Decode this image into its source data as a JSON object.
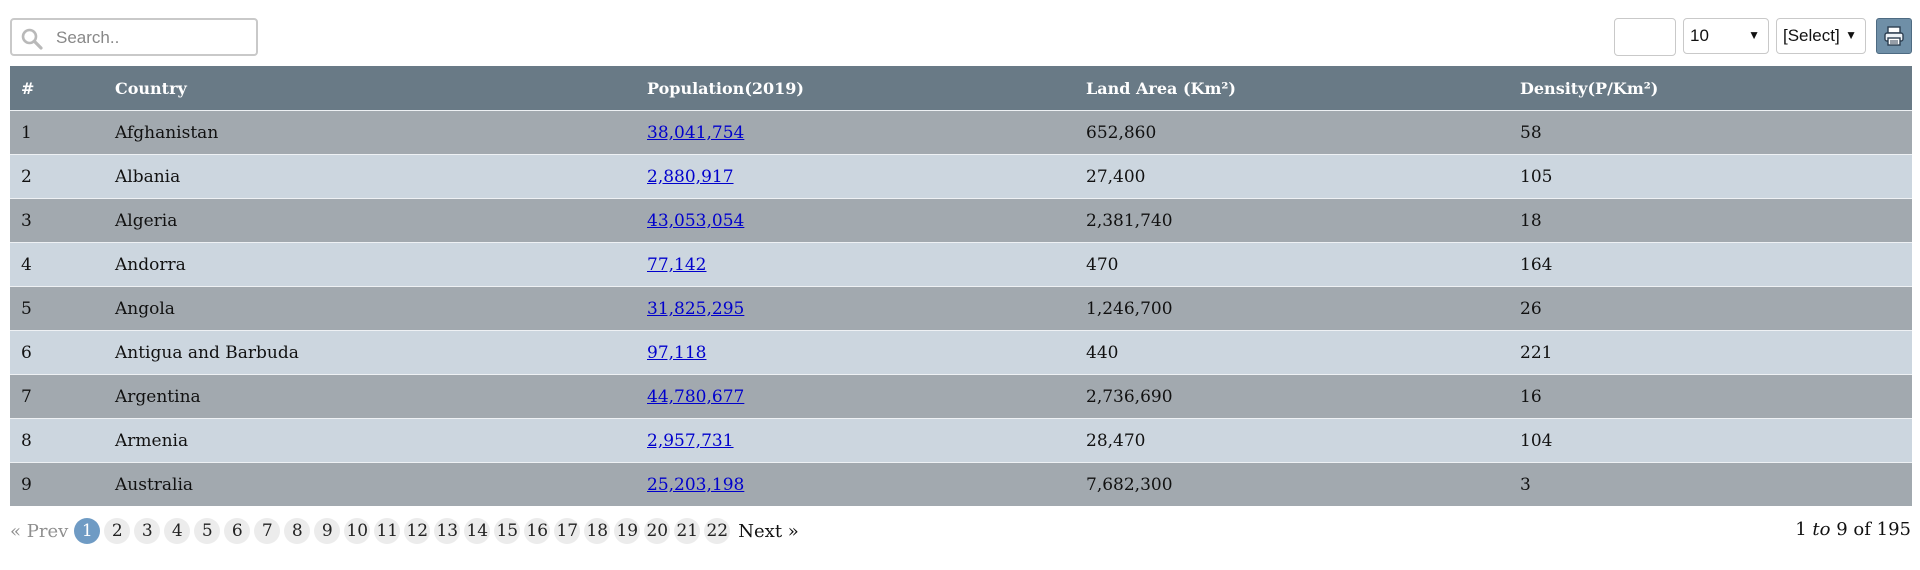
{
  "search": {
    "placeholder": "Search.."
  },
  "toolbar": {
    "page_size": "10",
    "sort_select": "[Select]",
    "print_icon": "printer-icon",
    "caret": "▼"
  },
  "table": {
    "headers": [
      "#",
      "Country",
      "Population(2019)",
      "Land Area (Km²)",
      "Density(P/Km²)"
    ],
    "rows": [
      {
        "n": "1",
        "country": "Afghanistan",
        "population": "38,041,754",
        "area": "652,860",
        "density": "58"
      },
      {
        "n": "2",
        "country": "Albania",
        "population": "2,880,917",
        "area": "27,400",
        "density": "105"
      },
      {
        "n": "3",
        "country": "Algeria",
        "population": "43,053,054",
        "area": "2,381,740",
        "density": "18"
      },
      {
        "n": "4",
        "country": "Andorra",
        "population": "77,142",
        "area": "470",
        "density": "164"
      },
      {
        "n": "5",
        "country": "Angola",
        "population": "31,825,295",
        "area": "1,246,700",
        "density": "26"
      },
      {
        "n": "6",
        "country": "Antigua and Barbuda",
        "population": "97,118",
        "area": "440",
        "density": "221"
      },
      {
        "n": "7",
        "country": "Argentina",
        "population": "44,780,677",
        "area": "2,736,690",
        "density": "16"
      },
      {
        "n": "8",
        "country": "Armenia",
        "population": "2,957,731",
        "area": "28,470",
        "density": "104"
      },
      {
        "n": "9",
        "country": "Australia",
        "population": "25,203,198",
        "area": "7,682,300",
        "density": "3"
      }
    ]
  },
  "pagination": {
    "prev": "« Prev",
    "next": "Next »",
    "pages": [
      "1",
      "2",
      "3",
      "4",
      "5",
      "6",
      "7",
      "8",
      "9",
      "10",
      "11",
      "12",
      "13",
      "14",
      "15",
      "16",
      "17",
      "18",
      "19",
      "20",
      "21",
      "22"
    ],
    "current": "1",
    "range_start": "1",
    "range_to": "to",
    "range_end": "9",
    "range_of": "of",
    "total": "195"
  },
  "colors": {
    "header_bg": "#697a86",
    "row_dark": "#a2a9af",
    "row_light": "#ccd6df",
    "link": "#0000cc",
    "active_page": "#6f9bc4"
  }
}
